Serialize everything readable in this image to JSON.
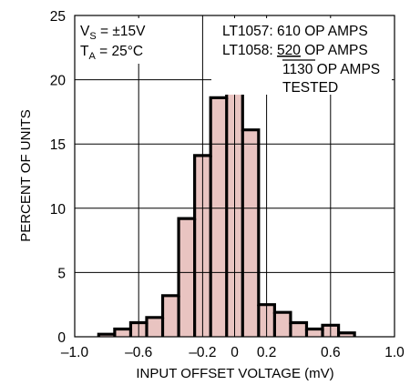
{
  "chart_data": {
    "type": "bar",
    "xlabel": "INPUT OFFSET VOLTAGE (mV)",
    "ylabel": "PERCENT OF UNITS",
    "xlim": [
      -1.0,
      1.0
    ],
    "ylim": [
      0,
      25
    ],
    "xticks": [
      -1.0,
      -0.6,
      -0.2,
      0,
      0.2,
      0.6,
      1.0
    ],
    "xtick_labels": [
      "–1.0",
      "–0.6",
      "–0.2",
      "0",
      "0.2",
      "0.6",
      "1.0"
    ],
    "yticks": [
      0,
      5,
      10,
      15,
      20,
      25
    ],
    "ytick_labels": [
      "0",
      "5",
      "10",
      "15",
      "20",
      "25"
    ],
    "grid": true,
    "bar_width": 0.1,
    "bins": [
      {
        "x": -0.8,
        "value": 0.2
      },
      {
        "x": -0.7,
        "value": 0.6
      },
      {
        "x": -0.6,
        "value": 1.1
      },
      {
        "x": -0.5,
        "value": 1.5
      },
      {
        "x": -0.4,
        "value": 3.2
      },
      {
        "x": -0.3,
        "value": 9.2
      },
      {
        "x": -0.2,
        "value": 14.1
      },
      {
        "x": -0.1,
        "value": 18.6
      },
      {
        "x": 0.0,
        "value": 21.3
      },
      {
        "x": 0.1,
        "value": 16.1
      },
      {
        "x": 0.2,
        "value": 2.5
      },
      {
        "x": 0.3,
        "value": 1.9
      },
      {
        "x": 0.4,
        "value": 1.1
      },
      {
        "x": 0.5,
        "value": 0.6
      },
      {
        "x": 0.6,
        "value": 0.9
      },
      {
        "x": 0.7,
        "value": 0.3
      }
    ],
    "colors": {
      "fill": "#e9c4c1",
      "outline": "#000000",
      "grid": "#000000"
    },
    "annotations": {
      "vs_main": "V",
      "vs_sub": "S",
      "vs_rest": " = ±15V",
      "ta_main": "T",
      "ta_sub": "A",
      "ta_rest": " = 25°C",
      "line1": "LT1057: 610 OP AMPS",
      "line2_prefix": "LT1058: ",
      "line2_value": "520",
      "line2_suffix": " OP AMPS",
      "line3_value": "1130",
      "line3_suffix": " OP AMPS",
      "line4": "TESTED"
    }
  }
}
